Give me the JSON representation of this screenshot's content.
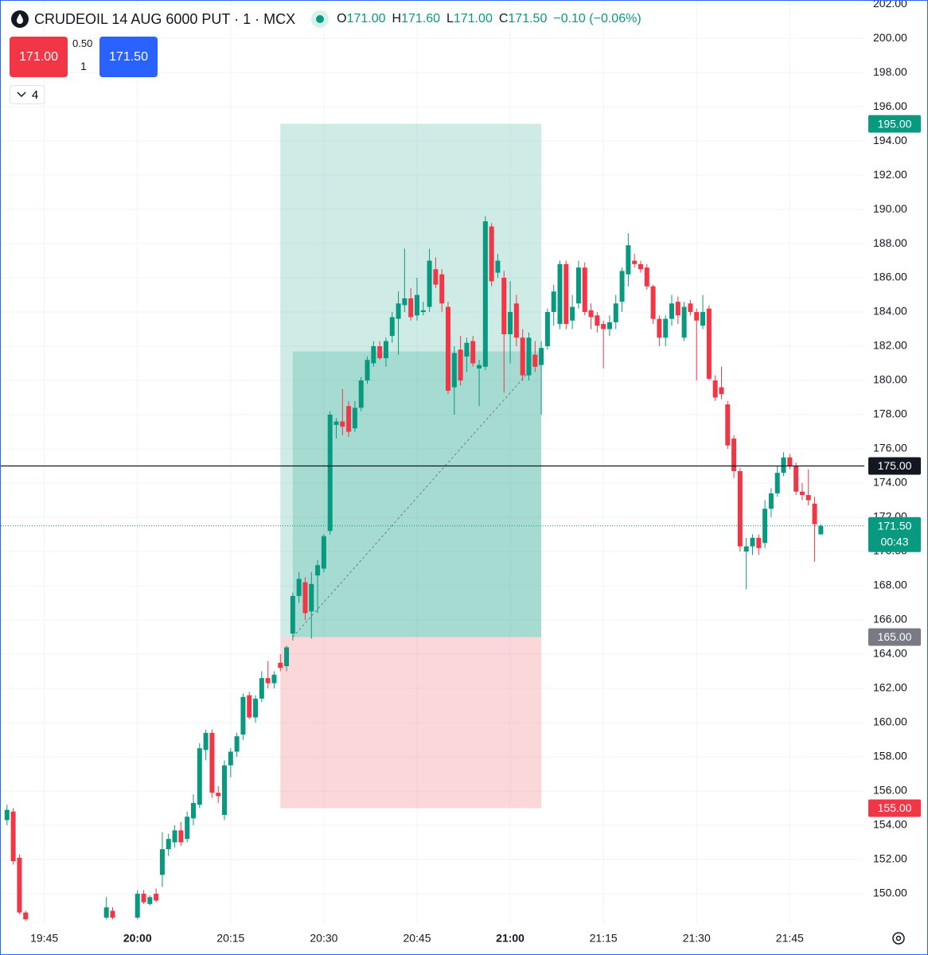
{
  "header": {
    "symbol": "CRUDEOIL 14 AUG 6000 PUT · 1 · MCX",
    "ohlc": [
      {
        "key": "O",
        "value": "171.00"
      },
      {
        "key": "H",
        "value": "171.60"
      },
      {
        "key": "L",
        "value": "171.00"
      },
      {
        "key": "C",
        "value": "171.50"
      }
    ],
    "change": "−0.10 (−0.06%)"
  },
  "trade": {
    "sell": "171.00",
    "spread": "0.50",
    "quantity": "1",
    "buy": "171.50"
  },
  "indicators_toggle": "4",
  "chart_data": {
    "type": "candlestick",
    "up_color": "#089981",
    "down_color": "#f23645",
    "grid": true,
    "xlim": [
      "19:38",
      "21:57"
    ],
    "ylim": [
      148.23,
      202.19
    ],
    "xticks": [
      "19:45",
      "20:00",
      "20:15",
      "20:30",
      "20:45",
      "21:00",
      "21:15",
      "21:30",
      "21:45"
    ],
    "yticks": [
      {
        "value": 150,
        "label": "150.00"
      },
      {
        "value": 152,
        "label": "152.00"
      },
      {
        "value": 154,
        "label": "154.00"
      },
      {
        "value": 156,
        "label": "156.00"
      },
      {
        "value": 158,
        "label": "158.00"
      },
      {
        "value": 160,
        "label": "160.00"
      },
      {
        "value": 162,
        "label": "162.00"
      },
      {
        "value": 164,
        "label": "164.00"
      },
      {
        "value": 166,
        "label": "166.00"
      },
      {
        "value": 168,
        "label": "168.00"
      },
      {
        "value": 170,
        "label": "170.00"
      },
      {
        "value": 172,
        "label": "172.00"
      },
      {
        "value": 174,
        "label": "174.00"
      },
      {
        "value": 176,
        "label": "176.00"
      },
      {
        "value": 178,
        "label": "178.00"
      },
      {
        "value": 180,
        "label": "180.00"
      },
      {
        "value": 182,
        "label": "182.00"
      },
      {
        "value": 184,
        "label": "184.00"
      },
      {
        "value": 186,
        "label": "186.00"
      },
      {
        "value": 188,
        "label": "188.00"
      },
      {
        "value": 190,
        "label": "190.00"
      },
      {
        "value": 192,
        "label": "192.00"
      },
      {
        "value": 194,
        "label": "194.00"
      },
      {
        "value": 196,
        "label": "196.00"
      },
      {
        "value": 198,
        "label": "198.00"
      },
      {
        "value": 200,
        "label": "200.00"
      },
      {
        "value": 202,
        "label": "202.00"
      }
    ],
    "x": [
      "19:39",
      "19:40",
      "19:41",
      "19:42",
      "19:55",
      "19:56",
      "20:00",
      "20:01",
      "20:02",
      "20:03",
      "20:04",
      "20:05",
      "20:06",
      "20:07",
      "20:08",
      "20:09",
      "20:10",
      "20:11",
      "20:12",
      "20:13",
      "20:14",
      "20:15",
      "20:16",
      "20:17",
      "20:18",
      "20:19",
      "20:20",
      "20:21",
      "20:22",
      "20:23",
      "20:24",
      "20:25",
      "20:26",
      "20:27",
      "20:28",
      "20:29",
      "20:30",
      "20:31",
      "20:32",
      "20:33",
      "20:34",
      "20:35",
      "20:36",
      "20:37",
      "20:38",
      "20:39",
      "20:40",
      "20:41",
      "20:42",
      "20:43",
      "20:44",
      "20:45",
      "20:46",
      "20:47",
      "20:48",
      "20:49",
      "20:50",
      "20:51",
      "20:52",
      "20:53",
      "20:54",
      "20:55",
      "20:56",
      "20:57",
      "20:58",
      "20:59",
      "21:00",
      "21:01",
      "21:02",
      "21:03",
      "21:04",
      "21:05",
      "21:06",
      "21:07",
      "21:08",
      "21:09",
      "21:10",
      "21:11",
      "21:12",
      "21:13",
      "21:14",
      "21:15",
      "21:16",
      "21:17",
      "21:18",
      "21:19",
      "21:20",
      "21:21",
      "21:22",
      "21:23",
      "21:24",
      "21:25",
      "21:26",
      "21:27",
      "21:28",
      "21:29",
      "21:30",
      "21:31",
      "21:32",
      "21:33",
      "21:34",
      "21:35",
      "21:36",
      "21:37",
      "21:38",
      "21:39",
      "21:40",
      "21:41",
      "21:42",
      "21:43",
      "21:44",
      "21:45",
      "21:46",
      "21:47",
      "21:48",
      "21:49",
      "21:50"
    ],
    "open": [
      154.3,
      154.8,
      152.1,
      148.9,
      148.6,
      149.0,
      148.6,
      150.0,
      149.4,
      150.0,
      151.1,
      152.6,
      153.0,
      153.7,
      153.2,
      154.4,
      155.2,
      158.4,
      159.4,
      155.9,
      154.6,
      157.5,
      158.3,
      159.3,
      161.6,
      160.3,
      161.4,
      162.6,
      162.3,
      163.5,
      163.3,
      165.2,
      167.4,
      168.2,
      166.5,
      168.6,
      169.0,
      171.2,
      177.4,
      177.6,
      178.5,
      177.2,
      178.4,
      180.0,
      181.0,
      182.0,
      181.3,
      182.6,
      183.6,
      184.4,
      184.8,
      183.8,
      184.0,
      184.3,
      186.5,
      186.2,
      184.3,
      179.6,
      181.8,
      181.4,
      182.3,
      180.7,
      180.8,
      189.0,
      186.3,
      186.0,
      182.7,
      184.5,
      182.5,
      180.3,
      181.5,
      180.9,
      182.0,
      184.0,
      183.3,
      186.8,
      183.5,
      184.5,
      186.6,
      184.1,
      183.8,
      183.3,
      183.0,
      183.4,
      184.6,
      186.2,
      187.0,
      186.8,
      186.6,
      185.5,
      183.6,
      182.5,
      183.6,
      184.6,
      182.5,
      184.5,
      184.0,
      183.2,
      184.2,
      180.0,
      179.6,
      178.6,
      176.6,
      174.7,
      170.0,
      170.3,
      170.8,
      170.5,
      172.5,
      173.4,
      174.6,
      175.5,
      175.0,
      173.5,
      173.3,
      172.8,
      171.0
    ],
    "high": [
      155.2,
      155.0,
      152.3,
      149.0,
      149.8,
      149.2,
      150.2,
      150.2,
      149.9,
      150.3,
      153.6,
      153.5,
      154.0,
      154.2,
      154.8,
      155.8,
      158.8,
      159.6,
      159.6,
      156.3,
      157.8,
      158.5,
      159.4,
      161.7,
      161.8,
      161.6,
      163.0,
      163.6,
      163.0,
      164.0,
      164.5,
      167.6,
      168.8,
      168.5,
      168.8,
      169.5,
      171.0,
      178.2,
      177.8,
      179.5,
      178.8,
      178.8,
      180.2,
      181.4,
      182.3,
      182.3,
      182.5,
      184.0,
      185.2,
      187.7,
      185.4,
      186.0,
      184.6,
      187.7,
      187.2,
      186.5,
      184.6,
      182.0,
      182.6,
      182.5,
      182.6,
      181.2,
      189.6,
      189.2,
      187.4,
      186.4,
      185.8,
      185.0,
      183.0,
      182.8,
      182.3,
      182.3,
      184.2,
      185.6,
      187.0,
      187.0,
      185.0,
      187.0,
      186.9,
      184.5,
      184.0,
      183.5,
      183.8,
      185.0,
      186.6,
      188.6,
      187.4,
      187.0,
      186.8,
      185.6,
      183.8,
      183.8,
      185.0,
      184.9,
      184.6,
      184.7,
      184.2,
      185.0,
      184.4,
      180.3,
      180.8,
      178.8,
      176.8,
      174.9,
      170.8,
      171.0,
      171.0,
      173.0,
      173.7,
      175.0,
      175.8,
      175.7,
      175.2,
      174.0,
      174.8,
      173.2,
      171.6
    ],
    "low": [
      154.0,
      151.7,
      148.8,
      148.4,
      148.5,
      148.5,
      148.5,
      149.4,
      149.3,
      149.5,
      150.4,
      152.2,
      152.7,
      152.8,
      153.0,
      154.0,
      155.0,
      157.8,
      155.6,
      155.3,
      154.3,
      156.8,
      158.0,
      159.0,
      160.2,
      160.0,
      161.2,
      162.0,
      162.0,
      163.0,
      163.0,
      164.8,
      167.0,
      166.0,
      164.9,
      166.4,
      168.8,
      171.0,
      176.6,
      176.8,
      176.7,
      177.0,
      178.2,
      179.8,
      180.8,
      181.2,
      180.8,
      182.2,
      181.5,
      184.0,
      183.5,
      183.5,
      183.8,
      184.0,
      185.4,
      184.0,
      179.2,
      178.0,
      179.7,
      180.5,
      180.8,
      178.5,
      180.6,
      185.5,
      186.0,
      179.3,
      181.0,
      182.0,
      180.0,
      180.0,
      180.5,
      178.0,
      181.8,
      183.2,
      183.0,
      183.0,
      183.0,
      184.2,
      183.8,
      183.0,
      182.8,
      180.7,
      182.6,
      183.0,
      184.0,
      185.5,
      186.6,
      186.3,
      185.3,
      183.3,
      182.0,
      182.0,
      183.2,
      183.3,
      182.3,
      183.8,
      180.0,
      183.0,
      180.0,
      178.8,
      178.9,
      176.0,
      174.3,
      170.0,
      167.8,
      169.8,
      169.8,
      170.2,
      172.0,
      173.2,
      174.4,
      174.8,
      173.3,
      173.0,
      172.7,
      169.4,
      171.0
    ],
    "close": [
      154.9,
      151.9,
      148.9,
      148.5,
      149.2,
      148.6,
      150.0,
      149.5,
      149.8,
      149.6,
      152.6,
      153.2,
      153.7,
      153.0,
      154.5,
      155.3,
      158.5,
      159.4,
      155.9,
      155.7,
      157.5,
      158.3,
      159.2,
      161.5,
      160.3,
      161.4,
      162.6,
      162.3,
      162.8,
      163.2,
      164.4,
      167.4,
      168.4,
      166.4,
      168.1,
      169.2,
      170.9,
      178.0,
      177.6,
      177.3,
      177.0,
      178.4,
      180.0,
      181.2,
      182.0,
      181.3,
      182.3,
      183.7,
      184.5,
      184.8,
      183.7,
      185.0,
      184.1,
      187.0,
      185.6,
      184.5,
      179.4,
      181.6,
      180.0,
      182.2,
      181.0,
      180.9,
      189.3,
      185.8,
      187.0,
      182.7,
      184.0,
      182.5,
      180.3,
      182.5,
      180.8,
      181.9,
      184.0,
      185.2,
      186.8,
      183.3,
      184.3,
      186.6,
      184.0,
      183.7,
      183.2,
      183.0,
      183.4,
      184.5,
      186.4,
      187.9,
      186.8,
      186.5,
      185.5,
      183.6,
      182.5,
      183.6,
      184.5,
      183.8,
      184.3,
      184.0,
      183.5,
      184.0,
      180.1,
      179.0,
      179.2,
      176.2,
      174.7,
      170.3,
      170.3,
      170.8,
      170.2,
      172.5,
      173.4,
      174.6,
      175.5,
      175.0,
      173.5,
      173.3,
      173.0,
      171.6,
      171.5
    ],
    "position": {
      "start": "20:23",
      "fill_start": "20:25",
      "end": "21:05",
      "entry": 165,
      "target": 195,
      "stop": 155,
      "filled_to": 181.7,
      "path_end": {
        "time": "21:03",
        "price": 180.5
      }
    },
    "crosshair_price": 175,
    "last_price": 171.5,
    "price_labels": [
      {
        "value": 195,
        "label": "195.00",
        "color": "#089981"
      },
      {
        "value": 175,
        "label": "175.00",
        "color": "#131722"
      },
      {
        "value": 171.5,
        "label": "171.50",
        "countdown": "00:43",
        "color": "#089981"
      },
      {
        "value": 165,
        "label": "165.00",
        "color": "#787b86"
      },
      {
        "value": 155,
        "label": "155.00",
        "color": "#f23645"
      }
    ]
  }
}
